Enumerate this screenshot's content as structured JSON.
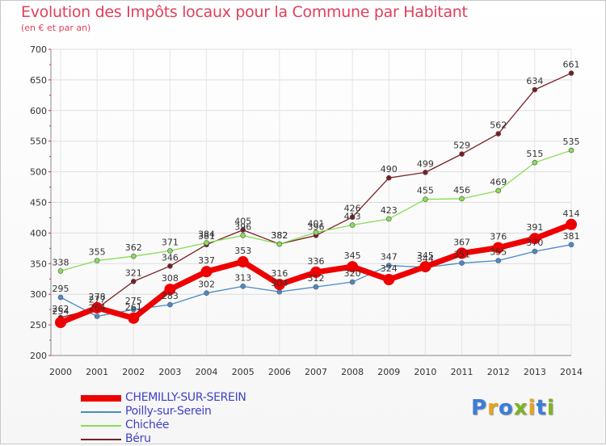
{
  "title": "Evolution des Impôts locaux pour la Commune par Habitant",
  "subtitle": "(en € et par an)",
  "logo": {
    "text": "Proxiti",
    "colors": [
      "#3b7dd8",
      "#e9a21a",
      "#3b7dd8",
      "#7ab51d",
      "#e9a21a",
      "#3b7dd8",
      "#7ab51d"
    ]
  },
  "chart_data": {
    "type": "line",
    "x": [
      2000,
      2001,
      2002,
      2003,
      2004,
      2005,
      2006,
      2007,
      2008,
      2009,
      2010,
      2011,
      2012,
      2013,
      2014
    ],
    "ylim": [
      200,
      700
    ],
    "yticks": [
      200,
      250,
      300,
      350,
      400,
      450,
      500,
      550,
      600,
      650,
      700
    ],
    "series": [
      {
        "name": "CHEMILLY-SUR-SEREIN",
        "color": "#ee0000",
        "values": [
          254,
          278,
          261,
          308,
          337,
          353,
          316,
          336,
          345,
          324,
          345,
          367,
          376,
          391,
          414
        ]
      },
      {
        "name": "Poilly-sur-Serein",
        "color": "#4a8ac8",
        "values": [
          295,
          264,
          275,
          283,
          302,
          313,
          304,
          312,
          320,
          347,
          344,
          351,
          355,
          370,
          381
        ]
      },
      {
        "name": "Chichée",
        "color": "#88dd55",
        "values": [
          338,
          355,
          362,
          371,
          384,
          396,
          382,
          401,
          413,
          423,
          455,
          456,
          469,
          515,
          535
        ]
      },
      {
        "name": "Béru",
        "color": "#7a1e24",
        "values": [
          262,
          277,
          321,
          346,
          381,
          405,
          382,
          396,
          426,
          490,
          499,
          529,
          562,
          634,
          661
        ]
      }
    ]
  }
}
